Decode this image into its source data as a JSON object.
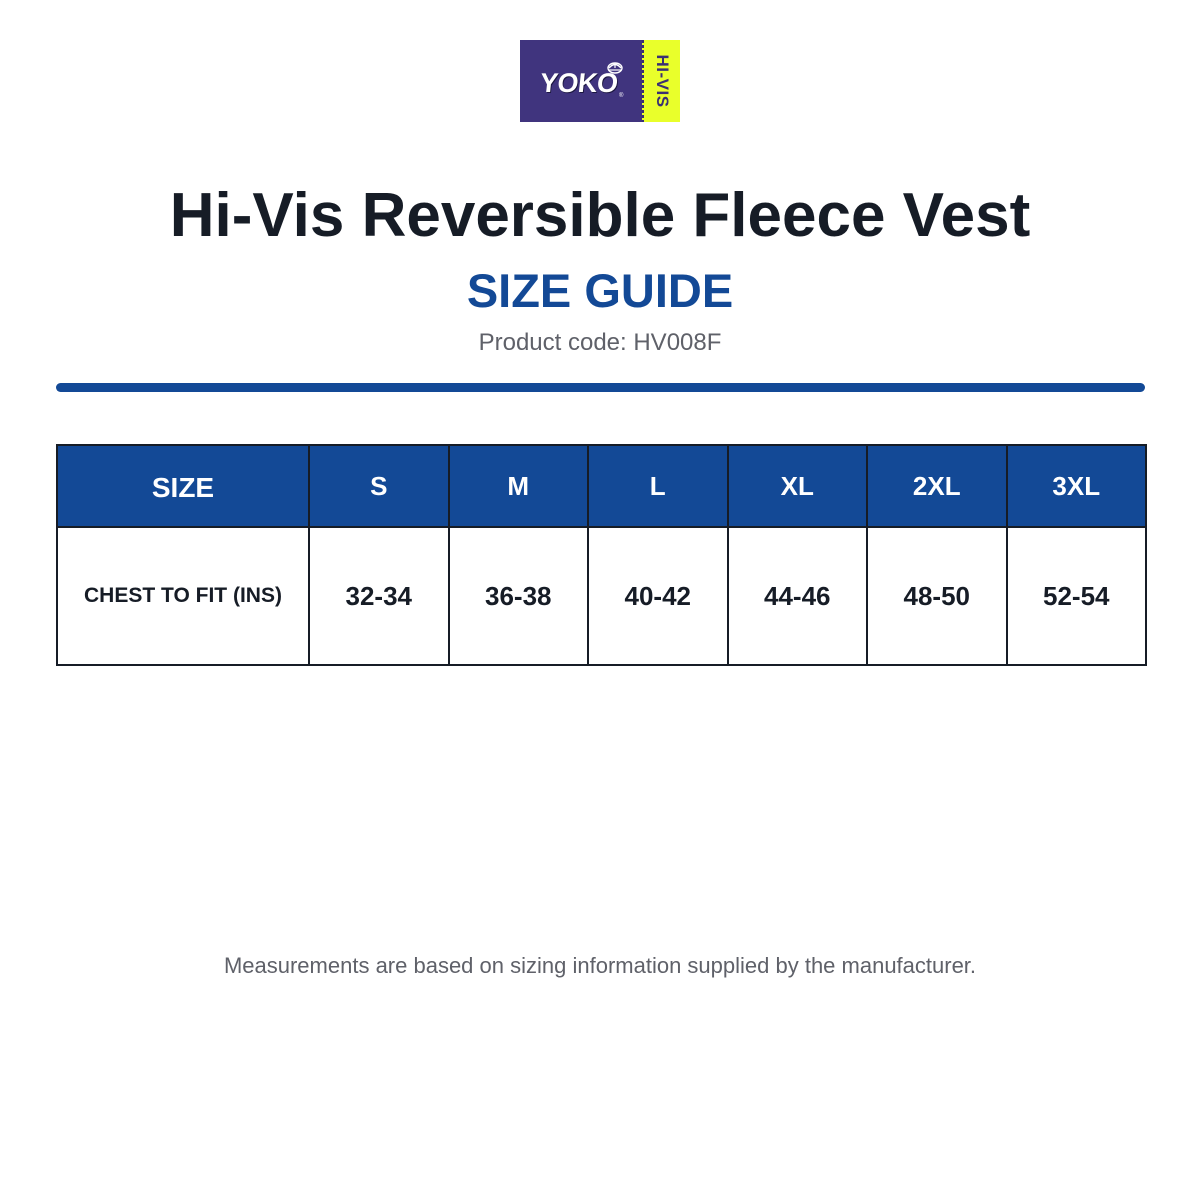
{
  "logo": {
    "brand": "YOKO",
    "reg_mark": "®",
    "tag": "HI-VIS",
    "brand_color": "#40347e",
    "tag_color": "#e9ff2b",
    "emblem_icon": "hard-hat-icon"
  },
  "header": {
    "title": "Hi-Vis Reversible Fleece Vest",
    "subtitle": "SIZE GUIDE",
    "product_code": "Product code: HV008F"
  },
  "colors": {
    "primary_blue": "#134996",
    "text_dark": "#161c26",
    "text_muted": "#5f6169"
  },
  "size_table": {
    "header_label": "SIZE",
    "sizes": [
      "S",
      "M",
      "L",
      "XL",
      "2XL",
      "3XL"
    ],
    "row_label": "CHEST TO FIT (INS)",
    "chest": [
      "32-34",
      "36-38",
      "40-42",
      "44-46",
      "48-50",
      "52-54"
    ]
  },
  "footer": {
    "note": "Measurements are based on sizing information supplied by the manufacturer."
  }
}
